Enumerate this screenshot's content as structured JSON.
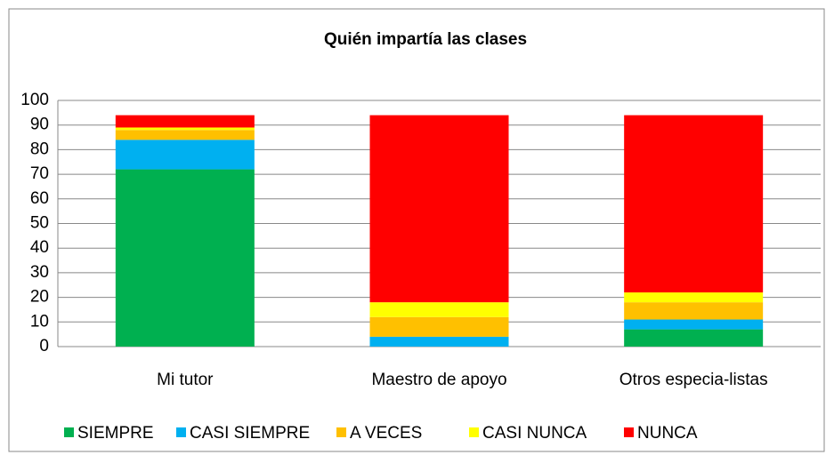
{
  "chart_data": {
    "type": "stacked_bar",
    "title": "Quién impartía las clases",
    "categories": [
      "Mi  tutor",
      "Maestro de apoyo",
      "Otros especia-listas"
    ],
    "series": [
      {
        "name": "SIEMPRE",
        "color": "#00b050",
        "values": [
          72,
          0,
          7
        ]
      },
      {
        "name": "CASI SIEMPRE",
        "color": "#00b0f0",
        "values": [
          12,
          4,
          4
        ]
      },
      {
        "name": "A VECES",
        "color": "#ffc000",
        "values": [
          4,
          8,
          7
        ]
      },
      {
        "name": "CASI NUNCA",
        "color": "#ffff00",
        "values": [
          1,
          6,
          4
        ]
      },
      {
        "name": "NUNCA",
        "color": "#ff0000",
        "values": [
          5,
          76,
          72
        ]
      }
    ],
    "ylim": [
      0,
      100
    ],
    "yticks": [
      0,
      10,
      20,
      30,
      40,
      50,
      60,
      70,
      80,
      90,
      100
    ],
    "grid": true,
    "legend": "bottom"
  }
}
